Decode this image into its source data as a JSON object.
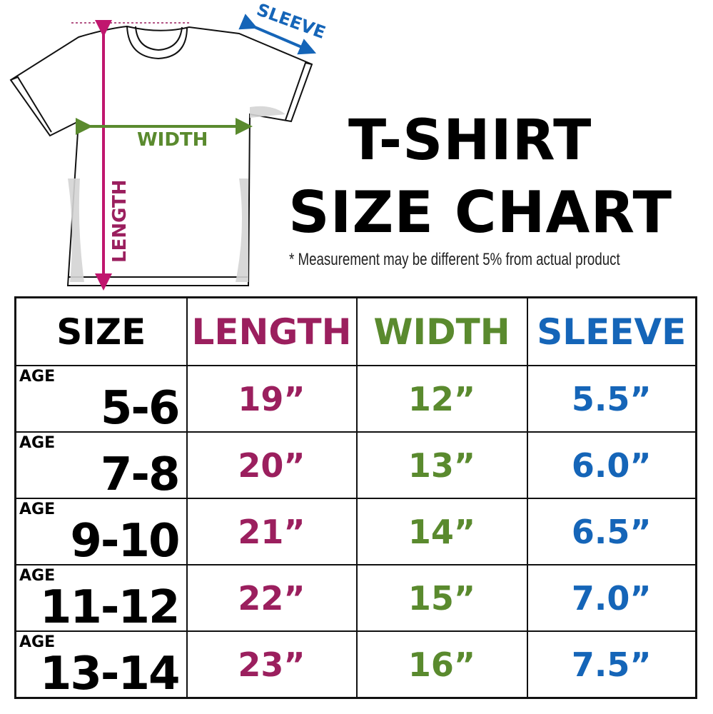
{
  "diagram": {
    "labels": {
      "sleeve": "SLEEVE",
      "width": "WIDTH",
      "length": "LENGTH"
    },
    "colors": {
      "length": "#9b1f5e",
      "width": "#5a8a2e",
      "sleeve": "#1565b8"
    }
  },
  "title": {
    "line1": "T-SHIRT",
    "line2": "SIZE CHART"
  },
  "note": "* Measurement may be different 5% from actual product",
  "table": {
    "headers": [
      "SIZE",
      "LENGTH",
      "WIDTH",
      "SLEEVE"
    ],
    "age_label": "AGE",
    "rows": [
      {
        "age": "5-6",
        "length": "19”",
        "width": "12”",
        "sleeve": "5.5”"
      },
      {
        "age": "7-8",
        "length": "20”",
        "width": "13”",
        "sleeve": "6.0”"
      },
      {
        "age": "9-10",
        "length": "21”",
        "width": "14”",
        "sleeve": "6.5”"
      },
      {
        "age": "11-12",
        "length": "22”",
        "width": "15”",
        "sleeve": "7.0”"
      },
      {
        "age": "13-14",
        "length": "23”",
        "width": "16”",
        "sleeve": "7.5”"
      }
    ]
  }
}
